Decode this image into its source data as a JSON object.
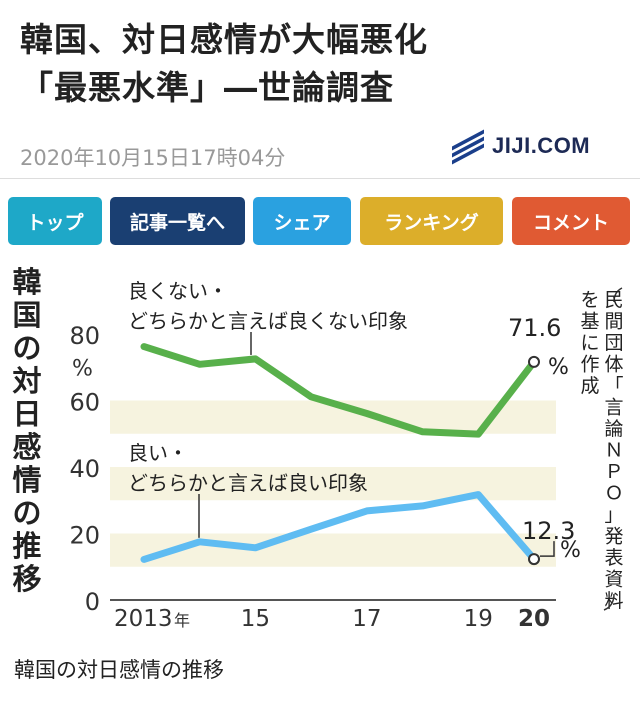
{
  "article": {
    "headline_line1": "韓国、対日感情が大幅悪化",
    "headline_line2": "「最悪水準」―世論調査",
    "dateline": "2020年10月15日17時04分",
    "logo_text": "JIJI.COM"
  },
  "toolbar": {
    "top_label": "トップ",
    "list_label": "記事一覧へ",
    "share_label": "シェア",
    "ranking_label": "ランキング",
    "comment_label": "コメント"
  },
  "colors": {
    "negative_series": "#58b04b",
    "positive_series": "#5fbcf2",
    "band": "#f6f3df",
    "btn_top": "#1ea8c8",
    "btn_list": "#1a3f72",
    "btn_share": "#2aa1e0",
    "btn_ranking": "#dcae2a",
    "btn_comment": "#e05a33"
  },
  "chart_data": {
    "type": "line",
    "title": "韓国の対日感情の推移",
    "source": "民間団体「言論ＮＰＯ」発表資料を基に作成",
    "ylabel": "%",
    "ylim": [
      0,
      80
    ],
    "yticks": [
      0,
      20,
      40,
      60,
      80
    ],
    "x": [
      2013,
      2014,
      2015,
      2016,
      2017,
      2018,
      2019,
      2020
    ],
    "xticks": [
      "2013年",
      "15",
      "17",
      "19",
      "20"
    ],
    "grid": "horizontal bands",
    "series": [
      {
        "name": "良くない・どちらかと言えば良くない印象",
        "name_line1": "良くない・",
        "name_line2": "どちらかと言えば良くない印象",
        "values": [
          76.2,
          70.9,
          72.5,
          61.1,
          56.1,
          50.6,
          49.9,
          71.6
        ],
        "end_label": "71.6",
        "end_unit": "%"
      },
      {
        "name": "良い・どちらかと言えば良い印象",
        "name_line1": "良い・",
        "name_line2": "どちらかと言えば良い印象",
        "values": [
          12.2,
          17.5,
          15.7,
          21.3,
          26.8,
          28.3,
          31.7,
          12.3
        ],
        "end_label": "12.3",
        "end_unit": "%"
      }
    ]
  },
  "caption": "韓国の対日感情の推移"
}
